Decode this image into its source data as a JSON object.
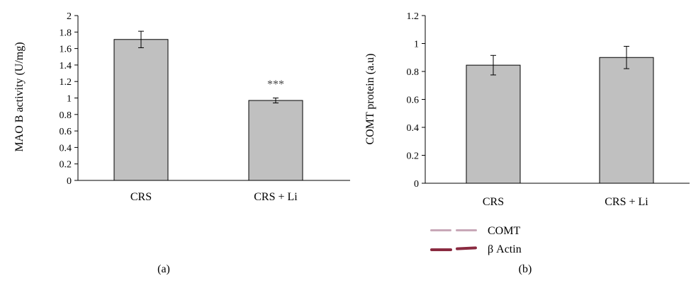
{
  "chart_data": [
    {
      "type": "bar",
      "categories": [
        "CRS",
        "CRS + Li"
      ],
      "values": [
        1.71,
        0.97
      ],
      "errors": [
        0.1,
        0.03
      ],
      "ylabel": "MAO B activity (U/mg)",
      "ylim": [
        0,
        2
      ],
      "yticks": [
        "0",
        "0.2",
        "0.4",
        "0.6",
        "0.8",
        "1",
        "1.2",
        "1.4",
        "1.6",
        "1.8",
        "2"
      ],
      "bar_color": "#c0c0c0",
      "annotations": [
        "",
        "***"
      ],
      "panel_label": "(a)"
    },
    {
      "type": "bar",
      "categories": [
        "CRS",
        "CRS + Li"
      ],
      "values": [
        0.845,
        0.9
      ],
      "errors": [
        0.07,
        0.08
      ],
      "ylabel": "COMT protein (a.u)",
      "ylim": [
        0,
        1.2
      ],
      "yticks": [
        "0",
        "0.2",
        "0.4",
        "0.6",
        "0.8",
        "1",
        "1.2"
      ],
      "bar_color": "#c0c0c0",
      "annotations": [
        "",
        ""
      ],
      "panel_label": "(b)",
      "blot_labels": [
        "COMT",
        "β Actin"
      ],
      "blot_colors": [
        "#c8a8b8",
        "#8a2a40"
      ]
    }
  ]
}
